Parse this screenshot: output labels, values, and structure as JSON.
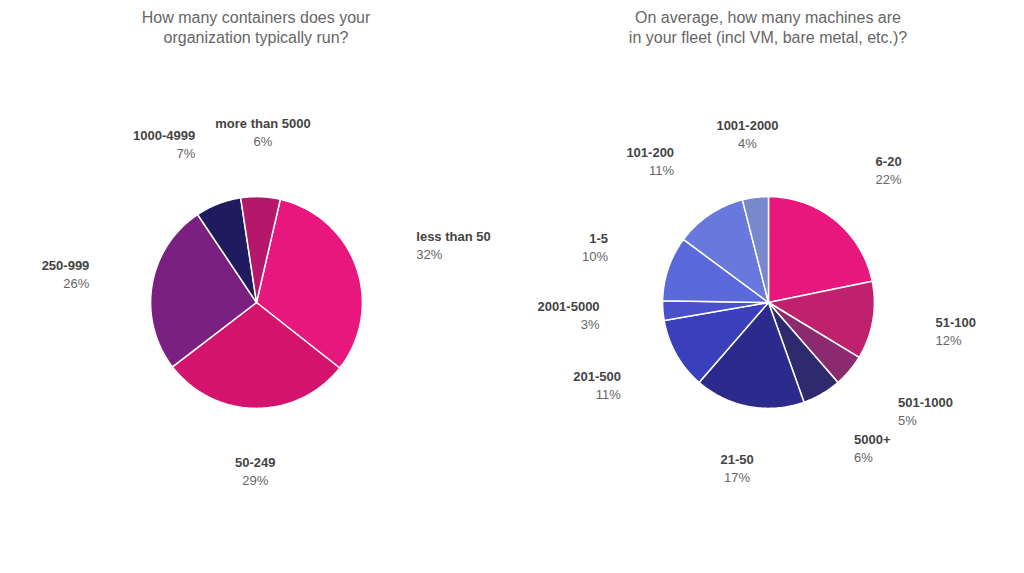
{
  "chart_data": [
    {
      "type": "pie",
      "title": "How many containers does your\norganization typically run?",
      "categories": [
        "less than 50",
        "50-249",
        "250-999",
        "1000-4999",
        "more than 5000"
      ],
      "values": [
        32,
        29,
        26,
        7,
        6
      ],
      "value_labels": [
        "32%",
        "29%",
        "26%",
        "7%",
        "6%"
      ],
      "colors": [
        "#e8177d",
        "#d4136e",
        "#7a2080",
        "#1e1b5e",
        "#b5176a"
      ],
      "data_labels": true
    },
    {
      "type": "pie",
      "title": "On average, how many machines are\nin your fleet (incl VM, bare metal, etc.)?",
      "categories": [
        "6-20",
        "51-100",
        "501-1000",
        "5000+",
        "21-50",
        "201-500",
        "2001-5000",
        "1-5",
        "101-200",
        "1001-2000"
      ],
      "values": [
        22,
        12,
        5,
        6,
        17,
        11,
        3,
        10,
        11,
        4
      ],
      "value_labels": [
        "22%",
        "12%",
        "5%",
        "6%",
        "17%",
        "11%",
        "3%",
        "10%",
        "11%",
        "4%"
      ],
      "colors": [
        "#e8177d",
        "#c0206e",
        "#8b2a6e",
        "#2d2a6e",
        "#2d2a8e",
        "#3a40bb",
        "#4a50cc",
        "#5a6add",
        "#6878dd",
        "#7888cc"
      ],
      "data_labels": true
    }
  ]
}
